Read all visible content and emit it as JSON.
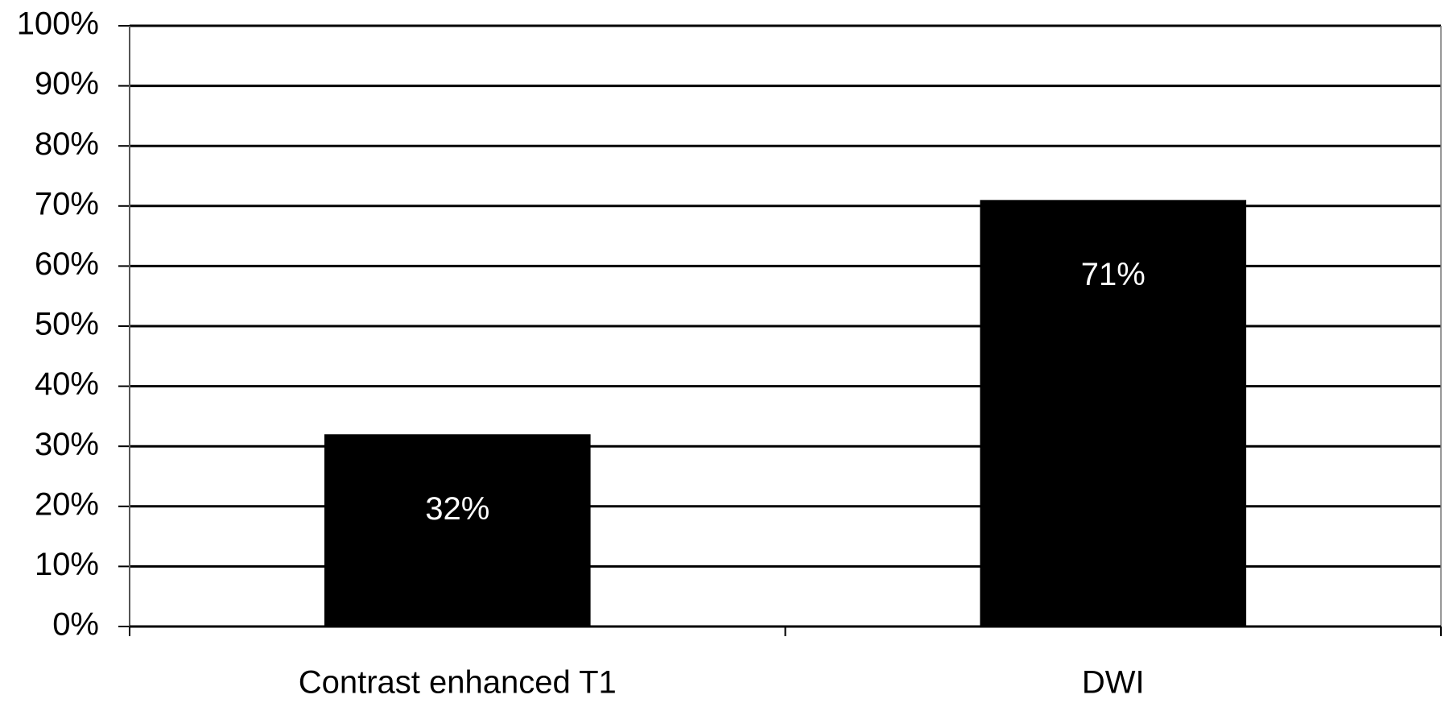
{
  "chart_data": {
    "type": "bar",
    "categories": [
      "Contrast enhanced T1",
      "DWI"
    ],
    "values": [
      32,
      71
    ],
    "value_labels": [
      "32%",
      "71%"
    ],
    "color": "#000000",
    "ylim": [
      0,
      100
    ],
    "yticks": [
      {
        "value": 0,
        "label": "0%"
      },
      {
        "value": 10,
        "label": "10%"
      },
      {
        "value": 20,
        "label": "20%"
      },
      {
        "value": 30,
        "label": "30%"
      },
      {
        "value": 40,
        "label": "40%"
      },
      {
        "value": 50,
        "label": "50%"
      },
      {
        "value": 60,
        "label": "60%"
      },
      {
        "value": 70,
        "label": "70%"
      },
      {
        "value": 80,
        "label": "80%"
      },
      {
        "value": 90,
        "label": "90%"
      },
      {
        "value": 100,
        "label": "100%"
      }
    ],
    "grid": true
  }
}
